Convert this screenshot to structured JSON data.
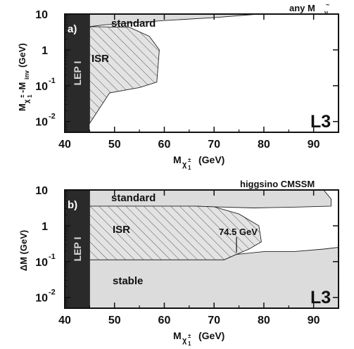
{
  "chart_data": [
    {
      "type": "area",
      "panel_label": "a)",
      "corner_label": "any M",
      "corner_label_sub": "~",
      "corner_label_subsub": "ν",
      "experiment_label": "L3",
      "lep_label": "LEP I",
      "xlabel_main": "M",
      "xlabel_chi": "χ",
      "xlabel_sub": "1",
      "xlabel_sup": "±",
      "xlabel_unit": "(GeV)",
      "ylabel_parts": {
        "m1": "M",
        "chi": "χ",
        "sub": "1",
        "sup": "±",
        "rest": "-M",
        "inv": "inv",
        "unit": "(GeV)"
      },
      "xlim": [
        40,
        95
      ],
      "ylim_log": [
        -2.3,
        1
      ],
      "log_y": true,
      "xticks": [
        40,
        50,
        60,
        70,
        80,
        90
      ],
      "xtick_labels": [
        "40",
        "50",
        "60",
        "70",
        "80",
        "90"
      ],
      "yticks_exp": [
        1,
        0,
        -1,
        -2
      ],
      "ytick_labels": [
        {
          "base": "10",
          "exp": ""
        },
        {
          "base": "1",
          "exp": ""
        },
        {
          "base": "10",
          "exp": "-1"
        },
        {
          "base": "10",
          "exp": "-2"
        }
      ],
      "lep_excluded_x": [
        40,
        45
      ],
      "regions": [
        {
          "name": "standard",
          "pattern": "solid",
          "color": "#dcdcdc",
          "boundary": [
            [
              45,
              0.65
            ],
            [
              48,
              0.7
            ],
            [
              60,
              0.82
            ],
            [
              70,
              0.9
            ],
            [
              79,
              1.0
            ],
            [
              45,
              1.0
            ]
          ]
        },
        {
          "name": "ISR",
          "pattern": "hatched",
          "color": "#e3e3e3",
          "boundary": [
            [
              45,
              0.65
            ],
            [
              53,
              0.63
            ],
            [
              57,
              0.38
            ],
            [
              59,
              0.0
            ],
            [
              58.5,
              -0.9
            ],
            [
              55,
              -1.05
            ],
            [
              49,
              -1.2
            ],
            [
              45,
              -2.05
            ]
          ]
        }
      ]
    },
    {
      "type": "area",
      "panel_label": "b)",
      "corner_label": "higgsino CMSSM",
      "experiment_label": "L3",
      "lep_label": "LEP I",
      "annotation": "74.5 GeV",
      "annotation_point": [
        74.5,
        -0.75
      ],
      "xlabel_main": "M",
      "xlabel_chi": "χ",
      "xlabel_sub": "1",
      "xlabel_sup": "±",
      "xlabel_unit": "(GeV)",
      "ylabel": "ΔM (GeV)",
      "xlim": [
        40,
        95
      ],
      "ylim_log": [
        -2.3,
        1
      ],
      "log_y": true,
      "xticks": [
        40,
        50,
        60,
        70,
        80,
        90
      ],
      "xtick_labels": [
        "40",
        "50",
        "60",
        "70",
        "80",
        "90"
      ],
      "yticks_exp": [
        1,
        0,
        -1,
        -2
      ],
      "ytick_labels": [
        {
          "base": "10",
          "exp": ""
        },
        {
          "base": "1",
          "exp": ""
        },
        {
          "base": "10",
          "exp": "-1"
        },
        {
          "base": "10",
          "exp": "-2"
        }
      ],
      "lep_excluded_x": [
        40,
        45
      ],
      "regions": [
        {
          "name": "standard",
          "pattern": "solid",
          "color": "#dcdcdc",
          "boundary": [
            [
              45,
              1.0
            ],
            [
              92,
              1.0
            ],
            [
              93.5,
              0.75
            ],
            [
              93.5,
              0.55
            ],
            [
              86,
              0.52
            ],
            [
              78,
              0.5
            ],
            [
              70,
              0.53
            ],
            [
              66,
              0.55
            ],
            [
              45,
              0.55
            ]
          ]
        },
        {
          "name": "ISR",
          "pattern": "hatched",
          "color": "#e3e3e3",
          "boundary": [
            [
              45,
              0.55
            ],
            [
              66,
              0.55
            ],
            [
              70,
              0.53
            ],
            [
              75,
              0.33
            ],
            [
              79,
              0.0
            ],
            [
              79.5,
              -0.45
            ],
            [
              77,
              -0.65
            ],
            [
              74.5,
              -0.8
            ],
            [
              72,
              -0.95
            ],
            [
              45,
              -0.95
            ]
          ]
        },
        {
          "name": "stable",
          "pattern": "solid",
          "color": "#dcdcdc",
          "boundary": [
            [
              45,
              -0.95
            ],
            [
              72,
              -0.95
            ],
            [
              74.5,
              -0.8
            ],
            [
              80,
              -0.72
            ],
            [
              86,
              -0.72
            ],
            [
              92,
              -0.65
            ],
            [
              95,
              -0.6
            ],
            [
              95,
              -2.3
            ],
            [
              45,
              -2.3
            ]
          ]
        }
      ],
      "region_labels": [
        "standard",
        "ISR",
        "stable"
      ]
    }
  ]
}
